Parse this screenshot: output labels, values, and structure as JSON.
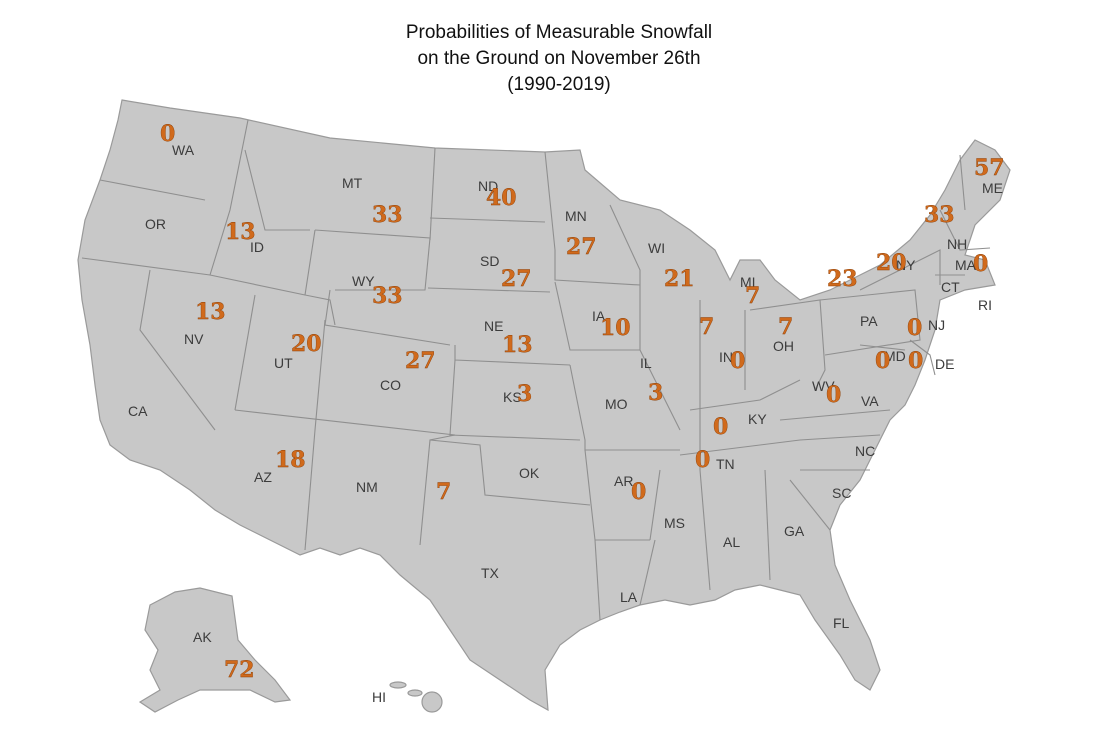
{
  "title_lines": [
    "Probabilities of Measurable Snowfall",
    "on the Ground on November 26th",
    "(1990-2019)"
  ],
  "colors": {
    "land": "#c8c8c8",
    "border": "#8f8f8f",
    "value": "#d06a1c",
    "background": "#ffffff"
  },
  "state_labels": [
    "WA",
    "OR",
    "CA",
    "ID",
    "NV",
    "MT",
    "WY",
    "UT",
    "AZ",
    "CO",
    "NM",
    "ND",
    "SD",
    "NE",
    "KS",
    "OK",
    "TX",
    "MN",
    "IA",
    "MO",
    "AR",
    "LA",
    "WI",
    "IL",
    "MS",
    "MI",
    "IN",
    "KY",
    "TN",
    "AL",
    "OH",
    "GA",
    "FL",
    "SC",
    "NC",
    "VA",
    "WV",
    "PA",
    "NY",
    "ME",
    "NH",
    "MA",
    "CT",
    "RI",
    "NJ",
    "DE",
    "MD",
    "AK",
    "HI"
  ],
  "snow_values": [
    {
      "value": "0"
    },
    {
      "value": "57"
    },
    {
      "value": "33"
    },
    {
      "value": "40"
    },
    {
      "value": "33"
    },
    {
      "value": "13"
    },
    {
      "value": "27"
    },
    {
      "value": "20"
    },
    {
      "value": "0"
    },
    {
      "value": "27"
    },
    {
      "value": "21"
    },
    {
      "value": "23"
    },
    {
      "value": "33"
    },
    {
      "value": "13"
    },
    {
      "value": "7"
    },
    {
      "value": "7"
    },
    {
      "value": "7"
    },
    {
      "value": "10"
    },
    {
      "value": "0"
    },
    {
      "value": "20"
    },
    {
      "value": "13"
    },
    {
      "value": "27"
    },
    {
      "value": "0"
    },
    {
      "value": "0"
    },
    {
      "value": "0"
    },
    {
      "value": "3"
    },
    {
      "value": "3"
    },
    {
      "value": "0"
    },
    {
      "value": "0"
    },
    {
      "value": "18"
    },
    {
      "value": "0"
    },
    {
      "value": "7"
    },
    {
      "value": "72"
    }
  ]
}
